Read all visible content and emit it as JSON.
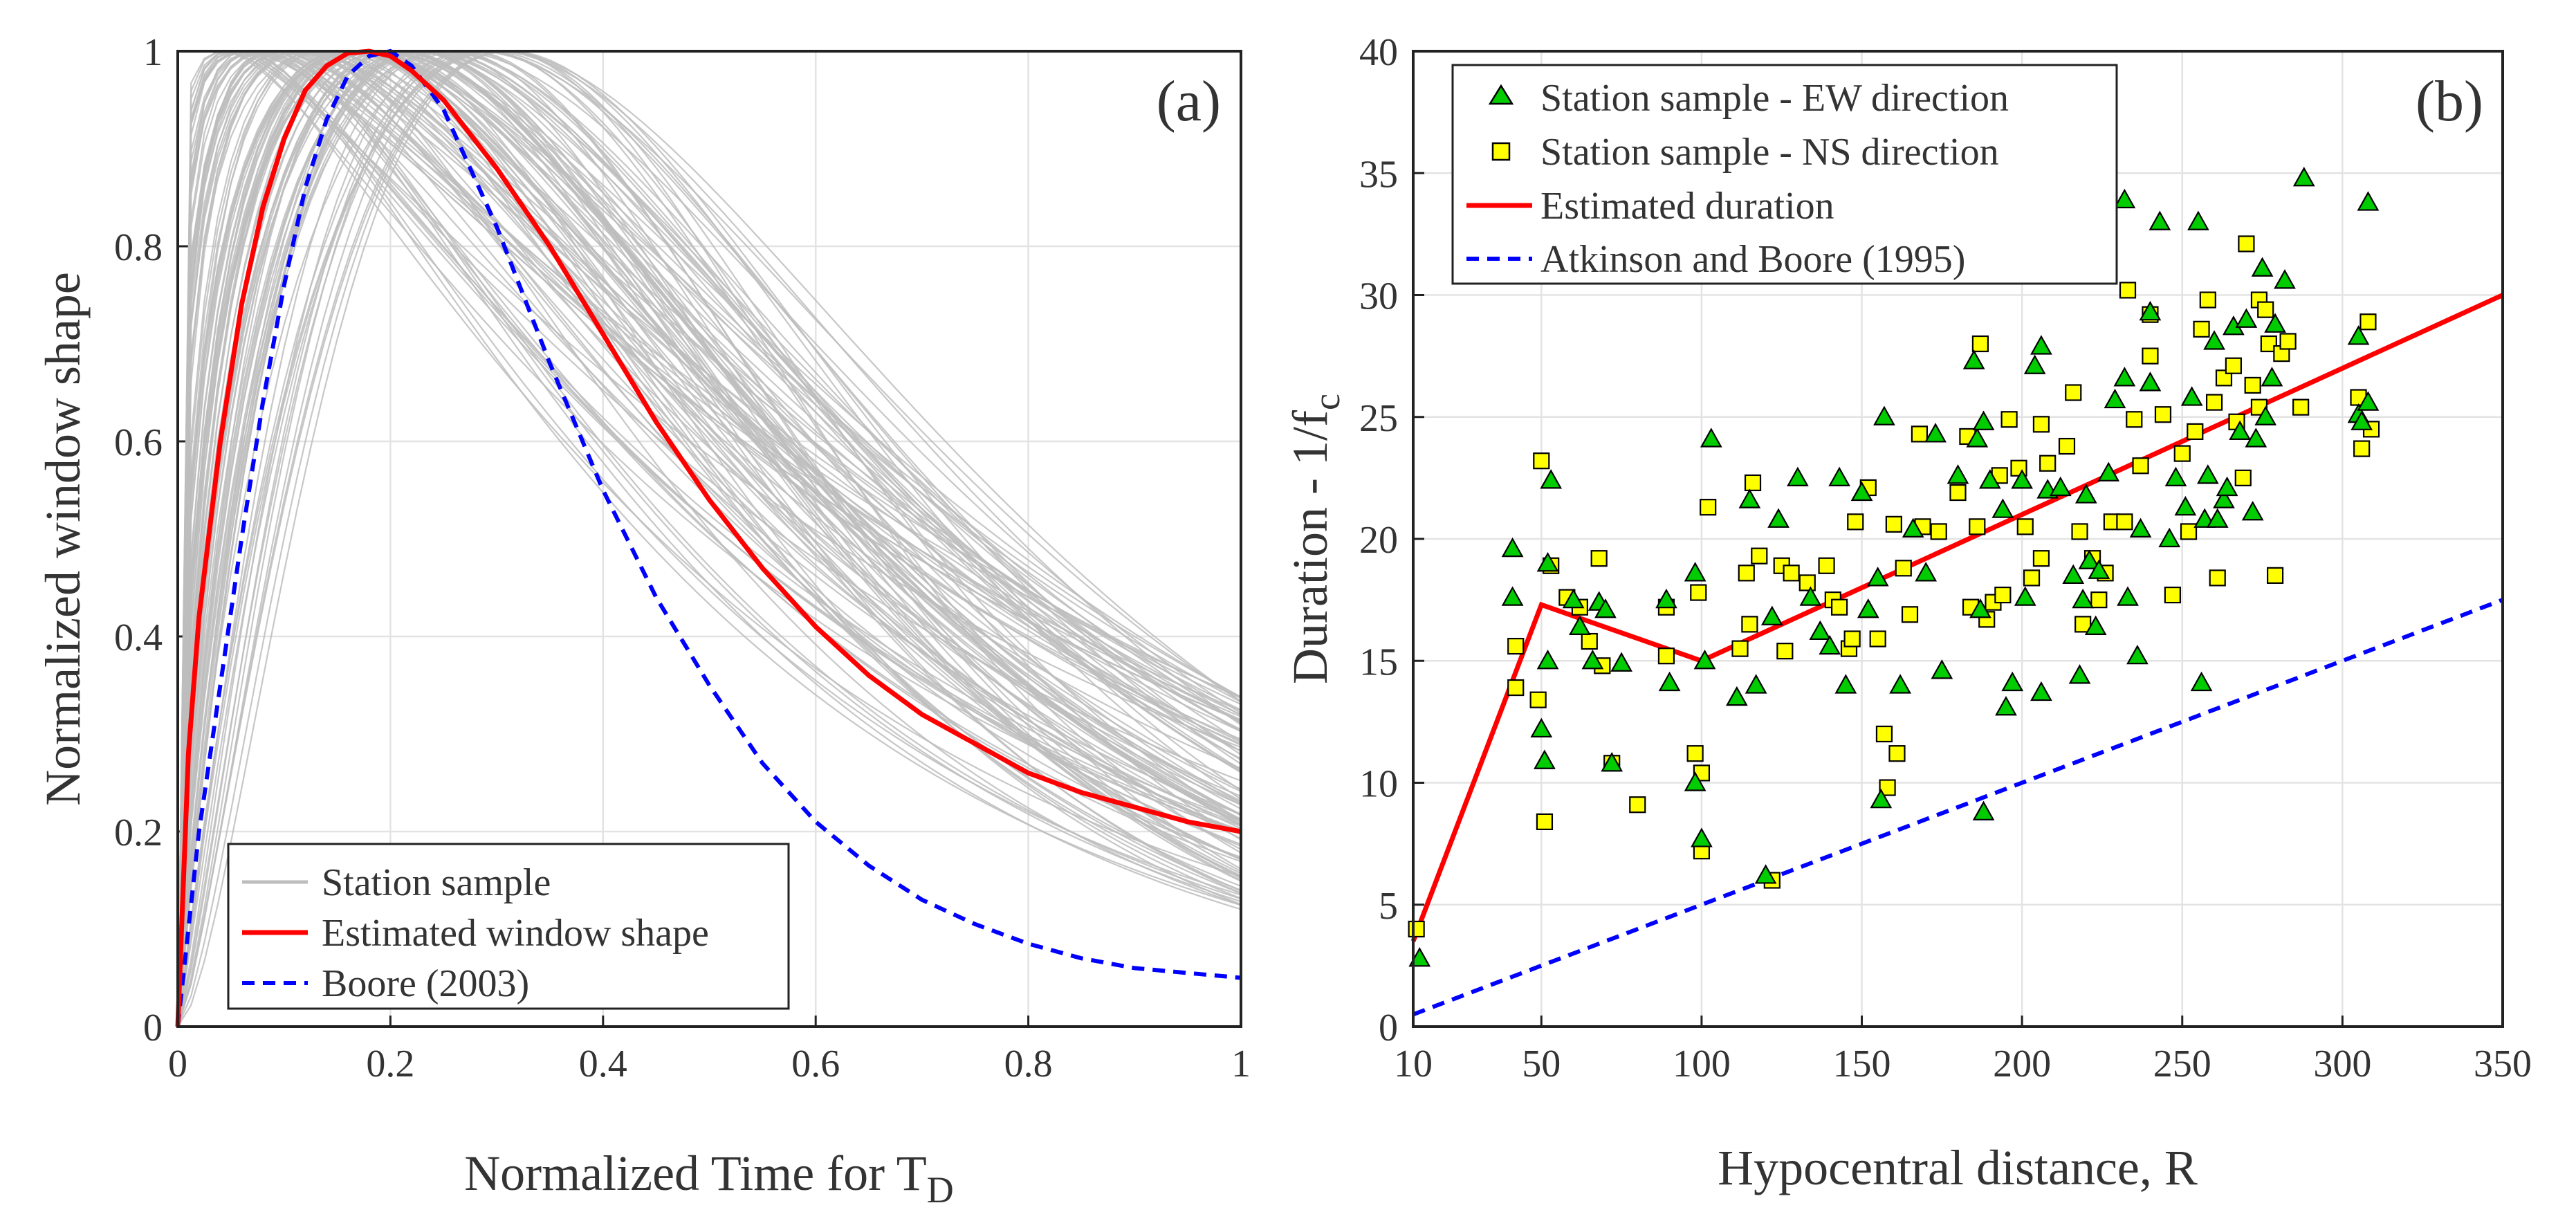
{
  "chart_data": [
    {
      "panel": "(a)",
      "type": "line",
      "xlabel": "Normalized Time for T",
      "xlabel_sub": "D",
      "ylabel": "Normalized window shape",
      "xlim": [
        0,
        1
      ],
      "ylim": [
        0,
        1
      ],
      "grid": true,
      "xticks": [
        0,
        0.2,
        0.4,
        0.6,
        0.8,
        1
      ],
      "xtick_labels": [
        "0",
        "0.2",
        "0.4",
        "0.6",
        "0.8",
        "1"
      ],
      "yticks": [
        0,
        0.2,
        0.4,
        0.6,
        0.8,
        1
      ],
      "ytick_labels": [
        "0",
        "0.2",
        "0.4",
        "0.6",
        "0.8",
        "1"
      ],
      "legend_location": "bottom-left",
      "series": [
        {
          "name": "Station sample",
          "color": "#bdbdbd",
          "style": "solid",
          "note": "many gray curves; envelope shown by parameter range",
          "peak_range": [
            0.04,
            0.32
          ],
          "tail_range_at_1": [
            0.12,
            0.34
          ]
        },
        {
          "name": "Estimated window shape",
          "color": "#ff0000",
          "style": "solid",
          "x": [
            0,
            0.01,
            0.02,
            0.04,
            0.06,
            0.08,
            0.1,
            0.12,
            0.14,
            0.16,
            0.18,
            0.2,
            0.22,
            0.25,
            0.3,
            0.35,
            0.4,
            0.45,
            0.5,
            0.55,
            0.6,
            0.65,
            0.7,
            0.75,
            0.8,
            0.85,
            0.9,
            0.95,
            1.0
          ],
          "y": [
            0,
            0.28,
            0.42,
            0.6,
            0.74,
            0.84,
            0.91,
            0.96,
            0.985,
            0.998,
            1.0,
            0.995,
            0.98,
            0.95,
            0.88,
            0.8,
            0.71,
            0.62,
            0.54,
            0.47,
            0.41,
            0.36,
            0.32,
            0.29,
            0.26,
            0.24,
            0.225,
            0.21,
            0.2
          ]
        },
        {
          "name": "Boore (2003)",
          "color": "#0000ff",
          "style": "dashed",
          "x": [
            0,
            0.02,
            0.04,
            0.06,
            0.08,
            0.1,
            0.12,
            0.14,
            0.16,
            0.18,
            0.2,
            0.22,
            0.25,
            0.3,
            0.35,
            0.4,
            0.45,
            0.5,
            0.55,
            0.6,
            0.65,
            0.7,
            0.75,
            0.8,
            0.85,
            0.9,
            0.95,
            1.0
          ],
          "y": [
            0,
            0.2,
            0.35,
            0.5,
            0.64,
            0.76,
            0.86,
            0.93,
            0.975,
            0.995,
            1.0,
            0.985,
            0.94,
            0.82,
            0.68,
            0.55,
            0.44,
            0.35,
            0.27,
            0.21,
            0.165,
            0.13,
            0.105,
            0.085,
            0.07,
            0.06,
            0.055,
            0.05
          ]
        }
      ]
    },
    {
      "panel": "(b)",
      "type": "scatter",
      "xlabel": "Hypocentral distance, R",
      "ylabel": "Duration - 1/f",
      "ylabel_sub": "c",
      "xlim": [
        10,
        350
      ],
      "ylim": [
        0,
        40
      ],
      "grid": true,
      "xticks": [
        10,
        50,
        100,
        150,
        200,
        250,
        300,
        350
      ],
      "xtick_labels": [
        "10",
        "50",
        "100",
        "150",
        "200",
        "250",
        "300",
        "350"
      ],
      "yticks": [
        0,
        5,
        10,
        15,
        20,
        25,
        30,
        35,
        40
      ],
      "ytick_labels": [
        "0",
        "5",
        "10",
        "15",
        "20",
        "25",
        "30",
        "35",
        "40"
      ],
      "legend_location": "top-left",
      "series": [
        {
          "name": "Station sample - EW direction",
          "marker": "triangle",
          "color": "#00cc00",
          "points": [
            [
              12,
              2.8
            ],
            [
              41,
              19.6
            ],
            [
              41,
              17.6
            ],
            [
              50,
              12.2
            ],
            [
              51,
              10.9
            ],
            [
              52,
              15.0
            ],
            [
              52,
              19.0
            ],
            [
              53,
              22.4
            ],
            [
              60,
              17.5
            ],
            [
              62,
              16.4
            ],
            [
              66,
              15.0
            ],
            [
              68,
              17.4
            ],
            [
              70,
              17.1
            ],
            [
              72,
              10.8
            ],
            [
              75,
              14.9
            ],
            [
              89,
              17.5
            ],
            [
              90,
              14.1
            ],
            [
              98,
              18.6
            ],
            [
              98,
              10.0
            ],
            [
              100,
              7.7
            ],
            [
              101,
              15.0
            ],
            [
              103,
              24.1
            ],
            [
              111,
              13.5
            ],
            [
              115,
              21.6
            ],
            [
              117,
              14.0
            ],
            [
              120,
              6.2
            ],
            [
              122,
              16.8
            ],
            [
              124,
              20.8
            ],
            [
              130,
              22.5
            ],
            [
              134,
              17.6
            ],
            [
              137,
              16.2
            ],
            [
              140,
              15.6
            ],
            [
              143,
              22.5
            ],
            [
              145,
              14.0
            ],
            [
              150,
              21.9
            ],
            [
              152,
              17.1
            ],
            [
              155,
              18.4
            ],
            [
              156,
              9.3
            ],
            [
              157,
              25.0
            ],
            [
              162,
              14.0
            ],
            [
              166,
              20.4
            ],
            [
              170,
              18.6
            ],
            [
              173,
              24.3
            ],
            [
              175,
              14.6
            ],
            [
              180,
              22.6
            ],
            [
              185,
              27.3
            ],
            [
              186,
              24.1
            ],
            [
              187,
              17.1
            ],
            [
              188,
              8.8
            ],
            [
              188,
              24.8
            ],
            [
              190,
              22.4
            ],
            [
              194,
              21.2
            ],
            [
              195,
              13.1
            ],
            [
              197,
              14.1
            ],
            [
              200,
              22.4
            ],
            [
              201,
              17.6
            ],
            [
              204,
              27.1
            ],
            [
              206,
              27.9
            ],
            [
              206,
              13.7
            ],
            [
              208,
              22.0
            ],
            [
              212,
              22.1
            ],
            [
              216,
              18.5
            ],
            [
              218,
              14.4
            ],
            [
              219,
              17.5
            ],
            [
              220,
              21.8
            ],
            [
              221,
              19.1
            ],
            [
              223,
              16.4
            ],
            [
              224,
              18.7
            ],
            [
              227,
              22.7
            ],
            [
              229,
              25.7
            ],
            [
              232,
              26.6
            ],
            [
              232,
              33.9
            ],
            [
              233,
              17.6
            ],
            [
              236,
              15.2
            ],
            [
              237,
              20.4
            ],
            [
              240,
              29.3
            ],
            [
              240,
              26.4
            ],
            [
              243,
              33.0
            ],
            [
              246,
              20.0
            ],
            [
              248,
              22.5
            ],
            [
              251,
              21.3
            ],
            [
              253,
              25.8
            ],
            [
              255,
              33.0
            ],
            [
              256,
              14.1
            ],
            [
              257,
              20.8
            ],
            [
              258,
              22.6
            ],
            [
              260,
              28.1
            ],
            [
              261,
              20.8
            ],
            [
              263,
              21.6
            ],
            [
              264,
              22.1
            ],
            [
              266,
              28.7
            ],
            [
              268,
              24.4
            ],
            [
              270,
              29.0
            ],
            [
              272,
              21.1
            ],
            [
              273,
              24.1
            ],
            [
              275,
              31.1
            ],
            [
              276,
              25.0
            ],
            [
              278,
              26.6
            ],
            [
              279,
              28.8
            ],
            [
              282,
              30.6
            ],
            [
              288,
              34.8
            ],
            [
              305,
              25.1
            ],
            [
              305,
              28.3
            ],
            [
              306,
              24.8
            ],
            [
              308,
              33.8
            ],
            [
              308,
              25.6
            ]
          ]
        },
        {
          "name": "Station sample - NS direction",
          "marker": "square",
          "color": "#ffff00",
          "points": [
            [
              11,
              4.0
            ],
            [
              42,
              15.6
            ],
            [
              42,
              13.9
            ],
            [
              49,
              13.4
            ],
            [
              50,
              23.2
            ],
            [
              51,
              8.4
            ],
            [
              53,
              18.9
            ],
            [
              58,
              17.6
            ],
            [
              62,
              17.2
            ],
            [
              65,
              15.8
            ],
            [
              68,
              19.2
            ],
            [
              69,
              14.8
            ],
            [
              72,
              10.8
            ],
            [
              80,
              9.1
            ],
            [
              89,
              15.2
            ],
            [
              89,
              17.2
            ],
            [
              98,
              11.2
            ],
            [
              99,
              17.8
            ],
            [
              100,
              7.2
            ],
            [
              100,
              10.4
            ],
            [
              102,
              21.3
            ],
            [
              112,
              15.5
            ],
            [
              114,
              18.6
            ],
            [
              115,
              16.5
            ],
            [
              116,
              22.3
            ],
            [
              118,
              19.3
            ],
            [
              122,
              6.0
            ],
            [
              125,
              18.9
            ],
            [
              126,
              15.4
            ],
            [
              128,
              18.6
            ],
            [
              133,
              18.2
            ],
            [
              139,
              18.9
            ],
            [
              141,
              17.5
            ],
            [
              143,
              17.2
            ],
            [
              146,
              15.5
            ],
            [
              147,
              15.9
            ],
            [
              148,
              20.7
            ],
            [
              152,
              22.1
            ],
            [
              155,
              15.9
            ],
            [
              157,
              12.0
            ],
            [
              158,
              9.8
            ],
            [
              160,
              20.6
            ],
            [
              161,
              11.2
            ],
            [
              163,
              18.8
            ],
            [
              165,
              16.9
            ],
            [
              168,
              24.3
            ],
            [
              169,
              20.5
            ],
            [
              174,
              20.3
            ],
            [
              180,
              21.9
            ],
            [
              183,
              24.2
            ],
            [
              184,
              17.2
            ],
            [
              186,
              20.5
            ],
            [
              187,
              28.0
            ],
            [
              189,
              16.7
            ],
            [
              191,
              17.4
            ],
            [
              193,
              22.6
            ],
            [
              194,
              17.7
            ],
            [
              196,
              24.9
            ],
            [
              199,
              22.9
            ],
            [
              201,
              20.5
            ],
            [
              203,
              18.4
            ],
            [
              206,
              19.2
            ],
            [
              206,
              24.7
            ],
            [
              208,
              23.1
            ],
            [
              214,
              23.8
            ],
            [
              216,
              26.0
            ],
            [
              218,
              20.3
            ],
            [
              219,
              16.5
            ],
            [
              222,
              19.2
            ],
            [
              224,
              17.5
            ],
            [
              226,
              18.6
            ],
            [
              228,
              20.7
            ],
            [
              232,
              20.7
            ],
            [
              233,
              30.2
            ],
            [
              235,
              24.9
            ],
            [
              237,
              23.0
            ],
            [
              240,
              27.5
            ],
            [
              240,
              29.2
            ],
            [
              244,
              25.1
            ],
            [
              247,
              17.7
            ],
            [
              250,
              23.5
            ],
            [
              252,
              20.3
            ],
            [
              254,
              24.4
            ],
            [
              256,
              28.6
            ],
            [
              258,
              29.8
            ],
            [
              260,
              25.6
            ],
            [
              261,
              18.4
            ],
            [
              263,
              26.6
            ],
            [
              266,
              27.1
            ],
            [
              267,
              24.8
            ],
            [
              269,
              22.5
            ],
            [
              270,
              32.1
            ],
            [
              272,
              26.3
            ],
            [
              274,
              25.4
            ],
            [
              274,
              29.8
            ],
            [
              276,
              29.4
            ],
            [
              277,
              28.0
            ],
            [
              279,
              18.5
            ],
            [
              281,
              27.6
            ],
            [
              283,
              28.1
            ],
            [
              287,
              25.4
            ],
            [
              305,
              25.8
            ],
            [
              306,
              23.7
            ],
            [
              308,
              28.9
            ],
            [
              309,
              24.5
            ]
          ]
        },
        {
          "name": "Estimated duration",
          "color": "#ff0000",
          "style": "solid",
          "x": [
            10,
            50,
            100,
            350
          ],
          "y": [
            3.5,
            17.3,
            15.0,
            30.0
          ]
        },
        {
          "name": "Atkinson and Boore (1995)",
          "color": "#0000ff",
          "style": "dashed",
          "x": [
            10,
            350
          ],
          "y": [
            0.5,
            17.5
          ]
        }
      ]
    }
  ]
}
